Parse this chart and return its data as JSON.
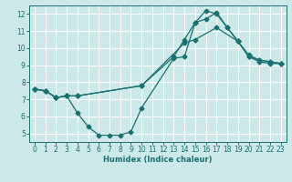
{
  "title": "",
  "xlabel": "Humidex (Indice chaleur)",
  "bg_color": "#cce8e8",
  "line_color": "#1a7070",
  "grid_color": "#ffffff",
  "xlim": [
    -0.5,
    23.5
  ],
  "ylim": [
    4.5,
    12.5
  ],
  "xticks": [
    0,
    1,
    2,
    3,
    4,
    5,
    6,
    7,
    8,
    9,
    10,
    11,
    12,
    13,
    14,
    15,
    16,
    17,
    18,
    19,
    20,
    21,
    22,
    23
  ],
  "yticks": [
    5,
    6,
    7,
    8,
    9,
    10,
    11,
    12
  ],
  "line1_x": [
    0,
    1,
    2,
    3,
    4,
    10,
    13,
    14,
    15,
    16,
    17,
    18,
    19,
    20,
    21,
    22,
    23
  ],
  "line1_y": [
    7.6,
    7.5,
    7.1,
    7.2,
    7.2,
    7.8,
    9.5,
    10.5,
    11.5,
    11.7,
    12.1,
    11.2,
    10.4,
    9.6,
    9.3,
    9.2,
    9.1
  ],
  "line2_x": [
    0,
    1,
    2,
    3,
    4,
    5,
    6,
    7,
    8,
    9,
    10,
    13,
    14,
    15,
    16,
    17,
    18,
    19,
    20,
    21,
    22,
    23
  ],
  "line2_y": [
    7.6,
    7.5,
    7.1,
    7.2,
    6.2,
    5.4,
    4.9,
    4.9,
    4.9,
    5.1,
    6.5,
    9.4,
    9.5,
    11.5,
    12.2,
    12.0,
    11.2,
    10.4,
    9.5,
    9.2,
    9.1,
    9.1
  ],
  "line3_x": [
    0,
    1,
    2,
    3,
    4,
    10,
    14,
    15,
    17,
    19,
    20,
    21,
    22,
    23
  ],
  "line3_y": [
    7.6,
    7.5,
    7.1,
    7.2,
    7.2,
    7.8,
    10.3,
    10.5,
    11.2,
    10.4,
    9.5,
    9.3,
    9.2,
    9.1
  ]
}
